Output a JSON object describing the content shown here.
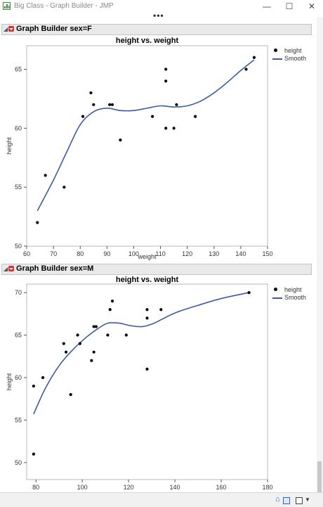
{
  "window": {
    "title": "Big Class - Graph Builder - JMP",
    "minimize_glyph": "—",
    "maximize_glyph": "☐",
    "close_glyph": "✕",
    "more_glyph": "•••"
  },
  "panels": [
    {
      "header": "Graph Builder sex=F",
      "chart_title": "height vs. weight",
      "xlabel": "weight",
      "ylabel": "height",
      "legend": [
        "height",
        "Smooth"
      ]
    },
    {
      "header": "Graph Builder sex=M",
      "chart_title": "height vs. weight",
      "xlabel": "",
      "ylabel": "height",
      "legend": [
        "height",
        "Smooth"
      ]
    }
  ],
  "colors": {
    "points": "#000000",
    "smooth": "#3c5aa8",
    "header_bg": "#e9e9e9",
    "hotspot": "#d23030"
  },
  "icons": {
    "app": "graph-builder-icon",
    "home": "home-icon",
    "window": "window-list-icon",
    "select": "select-square-icon"
  },
  "chart_data": [
    {
      "type": "scatter",
      "title": "height vs. weight",
      "xlabel": "weight",
      "ylabel": "height",
      "xlim": [
        60,
        150
      ],
      "ylim": [
        50,
        67
      ],
      "xticks": [
        60,
        70,
        80,
        90,
        100,
        110,
        120,
        130,
        140,
        150
      ],
      "yticks": [
        50,
        55,
        60,
        65
      ],
      "grid": false,
      "legend_position": "right",
      "series": [
        {
          "name": "height",
          "kind": "points",
          "points": [
            [
              64,
              52
            ],
            [
              67,
              56
            ],
            [
              74,
              55
            ],
            [
              81,
              61
            ],
            [
              84,
              63
            ],
            [
              85,
              62
            ],
            [
              91,
              62
            ],
            [
              92,
              62
            ],
            [
              95,
              59
            ],
            [
              107,
              61
            ],
            [
              112,
              60
            ],
            [
              112,
              64
            ],
            [
              112,
              65
            ],
            [
              115,
              60
            ],
            [
              116,
              62
            ],
            [
              123,
              61
            ],
            [
              142,
              65
            ],
            [
              145,
              66
            ]
          ]
        },
        {
          "name": "Smooth",
          "kind": "line",
          "points": [
            [
              64,
              53
            ],
            [
              70,
              55.6
            ],
            [
              75,
              58
            ],
            [
              80,
              60.3
            ],
            [
              85,
              61.4
            ],
            [
              90,
              61.7
            ],
            [
              95,
              61.5
            ],
            [
              100,
              61.5
            ],
            [
              105,
              61.7
            ],
            [
              110,
              61.9
            ],
            [
              115,
              61.8
            ],
            [
              120,
              61.9
            ],
            [
              125,
              62.3
            ],
            [
              130,
              63
            ],
            [
              135,
              63.9
            ],
            [
              140,
              64.9
            ],
            [
              145,
              65.8
            ]
          ]
        }
      ]
    },
    {
      "type": "scatter",
      "title": "height vs. weight",
      "xlabel": "",
      "ylabel": "height",
      "xlim": [
        76,
        180
      ],
      "ylim": [
        48,
        71
      ],
      "xticks": [
        80,
        100,
        120,
        140,
        160,
        180
      ],
      "yticks": [
        50,
        55,
        60,
        65,
        70
      ],
      "grid": false,
      "legend_position": "right",
      "series": [
        {
          "name": "height",
          "kind": "points",
          "points": [
            [
              79,
              51
            ],
            [
              79,
              59
            ],
            [
              83,
              60
            ],
            [
              92,
              64
            ],
            [
              93,
              63
            ],
            [
              95,
              58
            ],
            [
              98,
              65
            ],
            [
              99,
              64
            ],
            [
              104,
              62
            ],
            [
              105,
              63
            ],
            [
              105,
              66
            ],
            [
              106,
              66
            ],
            [
              111,
              65
            ],
            [
              112,
              68
            ],
            [
              113,
              69
            ],
            [
              119,
              65
            ],
            [
              128,
              61
            ],
            [
              128,
              67
            ],
            [
              128,
              68
            ],
            [
              134,
              68
            ],
            [
              172,
              70
            ]
          ]
        },
        {
          "name": "Smooth",
          "kind": "line",
          "points": [
            [
              79,
              55.7
            ],
            [
              84,
              58.7
            ],
            [
              90,
              61.4
            ],
            [
              96,
              63.3
            ],
            [
              102,
              64.8
            ],
            [
              107,
              65.8
            ],
            [
              111,
              66.4
            ],
            [
              116,
              66.4
            ],
            [
              121,
              66.1
            ],
            [
              126,
              66
            ],
            [
              131,
              66.4
            ],
            [
              140,
              67.6
            ],
            [
              150,
              68.5
            ],
            [
              160,
              69.3
            ],
            [
              172,
              70
            ]
          ]
        }
      ]
    }
  ]
}
